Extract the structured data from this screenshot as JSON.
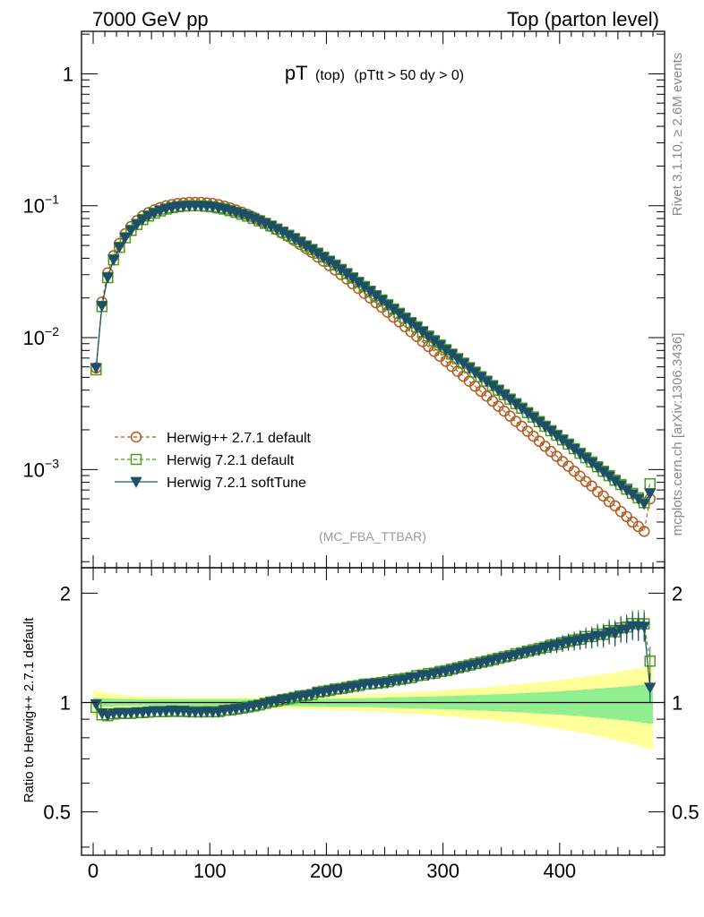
{
  "header": {
    "left": "7000 GeV pp",
    "right": "Top (parton level)"
  },
  "side_labels": {
    "rivet": "Rivet 3.1.10, ≥ 2.6M events",
    "mcplots": "mcplots.cern.ch [arXiv:1306.3436]"
  },
  "watermark": "(MC_FBA_TTBAR)",
  "colors": {
    "herwigpp": "#b35a1f",
    "herwig721": "#4f9a1f",
    "softtune": "#1d5068",
    "band_inner": "#90f090",
    "band_outer": "#ffff99"
  },
  "chart_data": [
    {
      "type": "line",
      "title_main": "pT",
      "title_sub": "(top)",
      "title_cut": "(pTtt > 50 dy > 0)",
      "yscale": "log",
      "xlim": [
        -10,
        490
      ],
      "ylim": [
        0.00018,
        2.1
      ],
      "y_ticks": [
        {
          "value": 1,
          "label": "1"
        },
        {
          "value": 0.1,
          "base": "10",
          "exp": "−1"
        },
        {
          "value": 0.01,
          "base": "10",
          "exp": "−2"
        },
        {
          "value": 0.001,
          "base": "10",
          "exp": "−3"
        }
      ],
      "legend_position": "lower-left",
      "x": [
        2.5,
        7.5,
        12.5,
        17.5,
        22.5,
        27.5,
        32.5,
        37.5,
        42.5,
        47.5,
        52.5,
        57.5,
        62.5,
        67.5,
        72.5,
        77.5,
        82.5,
        87.5,
        92.5,
        97.5,
        102.5,
        107.5,
        112.5,
        117.5,
        122.5,
        127.5,
        132.5,
        137.5,
        142.5,
        147.5,
        152.5,
        157.5,
        162.5,
        167.5,
        172.5,
        177.5,
        182.5,
        187.5,
        192.5,
        197.5,
        202.5,
        207.5,
        212.5,
        217.5,
        222.5,
        227.5,
        232.5,
        237.5,
        242.5,
        247.5,
        252.5,
        257.5,
        262.5,
        267.5,
        272.5,
        277.5,
        282.5,
        287.5,
        292.5,
        297.5,
        302.5,
        307.5,
        312.5,
        317.5,
        322.5,
        327.5,
        332.5,
        337.5,
        342.5,
        347.5,
        352.5,
        357.5,
        362.5,
        367.5,
        372.5,
        377.5,
        382.5,
        387.5,
        392.5,
        397.5,
        402.5,
        407.5,
        412.5,
        417.5,
        422.5,
        427.5,
        432.5,
        437.5,
        442.5,
        447.5,
        452.5,
        457.5,
        462.5,
        467.5,
        472.5,
        477.5
      ],
      "series": [
        {
          "name": "Herwig++ 2.7.1 default",
          "marker": "circle",
          "values": [
            0.0059,
            0.0186,
            0.031,
            0.0418,
            0.0518,
            0.0613,
            0.0696,
            0.0769,
            0.0837,
            0.0888,
            0.093,
            0.0968,
            0.1,
            0.102,
            0.104,
            0.105,
            0.106,
            0.106,
            0.106,
            0.105,
            0.104,
            0.102,
            0.0992,
            0.0962,
            0.0928,
            0.0894,
            0.0858,
            0.0819,
            0.078,
            0.074,
            0.0699,
            0.066,
            0.0619,
            0.0583,
            0.0546,
            0.0509,
            0.0474,
            0.0443,
            0.0409,
            0.038,
            0.0352,
            0.0326,
            0.0301,
            0.0278,
            0.0256,
            0.0236,
            0.0217,
            0.02,
            0.0184,
            0.017,
            0.0156,
            0.0143,
            0.0132,
            0.0121,
            0.0111,
            0.0102,
            0.00933,
            0.00857,
            0.00787,
            0.00721,
            0.00662,
            0.00607,
            0.00556,
            0.0051,
            0.00467,
            0.00428,
            0.00392,
            0.0036,
            0.0033,
            0.00302,
            0.00277,
            0.00254,
            0.00232,
            0.00213,
            0.00195,
            0.00179,
            0.00164,
            0.0015,
            0.00137,
            0.00126,
            0.00115,
            0.00106,
            0.00097,
            0.00089,
            0.00081,
            0.00075,
            0.00068,
            0.00063,
            0.00057,
            0.00053,
            0.00048,
            0.00044,
            0.0004,
            0.00037,
            0.00034,
            0.0006
          ]
        },
        {
          "name": "Herwig 7.2.1 default",
          "marker": "square",
          "values": [
            0.0057,
            0.0172,
            0.0285,
            0.0389,
            0.0484,
            0.0572,
            0.065,
            0.0721,
            0.0785,
            0.0836,
            0.0878,
            0.0914,
            0.0944,
            0.0967,
            0.0983,
            0.0994,
            0.1,
            0.1,
            0.0999,
            0.0991,
            0.0981,
            0.0963,
            0.0944,
            0.0918,
            0.0891,
            0.0863,
            0.0834,
            0.0801,
            0.0768,
            0.0736,
            0.0702,
            0.0666,
            0.0631,
            0.0597,
            0.0564,
            0.0531,
            0.0496,
            0.0466,
            0.0437,
            0.0408,
            0.038,
            0.0355,
            0.0329,
            0.0306,
            0.0284,
            0.0263,
            0.0244,
            0.0225,
            0.0208,
            0.0193,
            0.0178,
            0.0165,
            0.0153,
            0.0141,
            0.013,
            0.0121,
            0.0111,
            0.0103,
            0.00948,
            0.00878,
            0.0081,
            0.0075,
            0.00693,
            0.00641,
            0.00592,
            0.00548,
            0.00506,
            0.00468,
            0.00433,
            0.004,
            0.0037,
            0.00342,
            0.00316,
            0.00292,
            0.0027,
            0.0025,
            0.00231,
            0.00213,
            0.00197,
            0.00182,
            0.00168,
            0.00156,
            0.00144,
            0.00133,
            0.00123,
            0.00114,
            0.00105,
            0.00097,
            0.0009,
            0.00083,
            0.00077,
            0.00071,
            0.00066,
            0.00061,
            0.00056,
            0.00078
          ]
        },
        {
          "name": "Herwig 7.2.1 softTune",
          "marker": "triangle-down",
          "values": [
            0.0059,
            0.0174,
            0.0286,
            0.039,
            0.0485,
            0.0574,
            0.0652,
            0.0723,
            0.0787,
            0.0838,
            0.0881,
            0.0917,
            0.0947,
            0.097,
            0.0985,
            0.0996,
            0.1,
            0.1,
            0.0998,
            0.0991,
            0.098,
            0.0962,
            0.0943,
            0.0918,
            0.089,
            0.0862,
            0.0832,
            0.08,
            0.0767,
            0.0734,
            0.0701,
            0.0665,
            0.063,
            0.0596,
            0.0563,
            0.0529,
            0.0495,
            0.0465,
            0.0436,
            0.0406,
            0.0379,
            0.0354,
            0.0328,
            0.0305,
            0.0283,
            0.0262,
            0.0243,
            0.0225,
            0.0208,
            0.0192,
            0.0177,
            0.0164,
            0.0152,
            0.014,
            0.013,
            0.012,
            0.0111,
            0.0102,
            0.00945,
            0.00874,
            0.00806,
            0.00746,
            0.0069,
            0.00638,
            0.00589,
            0.00545,
            0.00503,
            0.00466,
            0.00431,
            0.00398,
            0.00368,
            0.0034,
            0.00314,
            0.00291,
            0.00269,
            0.00248,
            0.00229,
            0.00212,
            0.00196,
            0.00181,
            0.00167,
            0.00155,
            0.00143,
            0.00132,
            0.00122,
            0.00113,
            0.00104,
            0.00096,
            0.00089,
            0.00082,
            0.00076,
            0.0007,
            0.00065,
            0.0006,
            0.00055,
            0.00066
          ]
        }
      ]
    },
    {
      "type": "line",
      "ylabel": "Ratio to Herwig++ 2.7.1 default",
      "xlim": [
        -10,
        490
      ],
      "ylim": [
        0.38,
        2.35
      ],
      "x_ticks": [
        0,
        100,
        200,
        300,
        400
      ],
      "y_ticks": [
        0.5,
        1,
        2
      ],
      "reference_line": 1,
      "band_inner_halfwidth": [
        0.03,
        0.028,
        0.026,
        0.025,
        0.024,
        0.023,
        0.023,
        0.022,
        0.022,
        0.022,
        0.022,
        0.022,
        0.022,
        0.022,
        0.022,
        0.022,
        0.022,
        0.022,
        0.022,
        0.022,
        0.022,
        0.022,
        0.022,
        0.022,
        0.022,
        0.022,
        0.022,
        0.022,
        0.022,
        0.022,
        0.022,
        0.022,
        0.022,
        0.022,
        0.022,
        0.022,
        0.023,
        0.023,
        0.024,
        0.024,
        0.025,
        0.025,
        0.026,
        0.026,
        0.027,
        0.028,
        0.028,
        0.029,
        0.03,
        0.031,
        0.032,
        0.033,
        0.034,
        0.035,
        0.036,
        0.037,
        0.038,
        0.039,
        0.04,
        0.041,
        0.042,
        0.043,
        0.044,
        0.046,
        0.047,
        0.048,
        0.05,
        0.051,
        0.053,
        0.054,
        0.056,
        0.057,
        0.059,
        0.061,
        0.063,
        0.065,
        0.067,
        0.069,
        0.071,
        0.073,
        0.075,
        0.078,
        0.08,
        0.083,
        0.086,
        0.089,
        0.092,
        0.095,
        0.098,
        0.101,
        0.105,
        0.108,
        0.112,
        0.116,
        0.12,
        0.124
      ],
      "band_outer_halfwidth": [
        0.08,
        0.07,
        0.062,
        0.056,
        0.051,
        0.047,
        0.044,
        0.042,
        0.04,
        0.039,
        0.038,
        0.037,
        0.036,
        0.036,
        0.035,
        0.035,
        0.034,
        0.034,
        0.034,
        0.034,
        0.034,
        0.034,
        0.034,
        0.034,
        0.034,
        0.034,
        0.034,
        0.034,
        0.035,
        0.035,
        0.036,
        0.036,
        0.037,
        0.038,
        0.039,
        0.04,
        0.041,
        0.042,
        0.043,
        0.044,
        0.045,
        0.046,
        0.048,
        0.049,
        0.05,
        0.052,
        0.053,
        0.055,
        0.057,
        0.058,
        0.06,
        0.062,
        0.064,
        0.066,
        0.068,
        0.07,
        0.072,
        0.074,
        0.077,
        0.079,
        0.082,
        0.084,
        0.087,
        0.09,
        0.093,
        0.096,
        0.099,
        0.102,
        0.106,
        0.109,
        0.113,
        0.117,
        0.121,
        0.125,
        0.129,
        0.133,
        0.138,
        0.142,
        0.147,
        0.152,
        0.157,
        0.162,
        0.168,
        0.173,
        0.179,
        0.185,
        0.191,
        0.197,
        0.204,
        0.211,
        0.218,
        0.225,
        0.232,
        0.24,
        0.248,
        0.256
      ],
      "series": [
        {
          "name": "Herwig 7.2.1 default",
          "marker": "square",
          "values": [
            0.97,
            0.925,
            0.92,
            0.93,
            0.935,
            0.933,
            0.934,
            0.938,
            0.938,
            0.941,
            0.944,
            0.944,
            0.944,
            0.948,
            0.945,
            0.947,
            0.943,
            0.943,
            0.942,
            0.944,
            0.943,
            0.944,
            0.952,
            0.954,
            0.96,
            0.965,
            0.972,
            0.978,
            0.985,
            0.995,
            1.004,
            1.009,
            1.019,
            1.024,
            1.033,
            1.043,
            1.046,
            1.052,
            1.068,
            1.074,
            1.08,
            1.089,
            1.093,
            1.101,
            1.109,
            1.114,
            1.124,
            1.125,
            1.13,
            1.135,
            1.141,
            1.154,
            1.159,
            1.165,
            1.171,
            1.186,
            1.19,
            1.202,
            1.205,
            1.218,
            1.224,
            1.236,
            1.246,
            1.257,
            1.268,
            1.28,
            1.291,
            1.3,
            1.312,
            1.324,
            1.336,
            1.346,
            1.362,
            1.371,
            1.385,
            1.397,
            1.409,
            1.42,
            1.438,
            1.444,
            1.461,
            1.472,
            1.485,
            1.494,
            1.519,
            1.52,
            1.544,
            1.54,
            1.579,
            1.566,
            1.604,
            1.614,
            1.65,
            1.649,
            1.647,
            1.3
          ]
        },
        {
          "name": "Herwig 7.2.1 softTune",
          "marker": "triangle-down",
          "values": [
            0.99,
            0.935,
            0.922,
            0.933,
            0.936,
            0.936,
            0.937,
            0.94,
            0.94,
            0.944,
            0.947,
            0.947,
            0.947,
            0.951,
            0.947,
            0.949,
            0.943,
            0.943,
            0.942,
            0.944,
            0.942,
            0.943,
            0.951,
            0.954,
            0.959,
            0.964,
            0.97,
            0.977,
            0.983,
            0.992,
            1.003,
            1.008,
            1.018,
            1.022,
            1.031,
            1.039,
            1.044,
            1.05,
            1.066,
            1.068,
            1.077,
            1.086,
            1.09,
            1.097,
            1.105,
            1.11,
            1.12,
            1.125,
            1.13,
            1.129,
            1.135,
            1.147,
            1.152,
            1.157,
            1.171,
            1.176,
            1.19,
            1.19,
            1.201,
            1.212,
            1.218,
            1.229,
            1.241,
            1.251,
            1.261,
            1.273,
            1.283,
            1.294,
            1.306,
            1.318,
            1.329,
            1.339,
            1.353,
            1.366,
            1.379,
            1.387,
            1.397,
            1.415,
            1.429,
            1.437,
            1.452,
            1.466,
            1.473,
            1.485,
            1.5,
            1.507,
            1.529,
            1.524,
            1.561,
            1.547,
            1.588,
            1.591,
            1.625,
            1.622,
            1.618,
            1.1
          ]
        }
      ]
    }
  ]
}
